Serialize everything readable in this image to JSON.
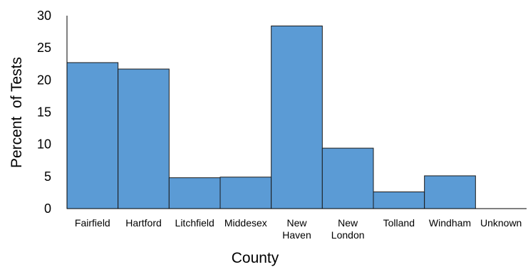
{
  "chart_data": {
    "type": "bar",
    "title": "",
    "xlabel": "County",
    "ylabel": "Percent  of Tests",
    "ylim": [
      0,
      30
    ],
    "yticks": [
      0,
      5,
      10,
      15,
      20,
      25,
      30
    ],
    "grid": false,
    "legend": "none",
    "bar_color": "#5b9bd5",
    "bar_edge_color": "#1a1a1a",
    "categories": [
      [
        "Fairfield"
      ],
      [
        "Hartford"
      ],
      [
        "Litchfield"
      ],
      [
        "Middesex"
      ],
      [
        "New",
        "Haven"
      ],
      [
        "New",
        "London"
      ],
      [
        "Tolland"
      ],
      [
        "Windham"
      ],
      [
        "Unknown"
      ]
    ],
    "values": [
      22.7,
      21.7,
      4.8,
      4.9,
      28.4,
      9.4,
      2.6,
      5.1,
      0
    ]
  }
}
